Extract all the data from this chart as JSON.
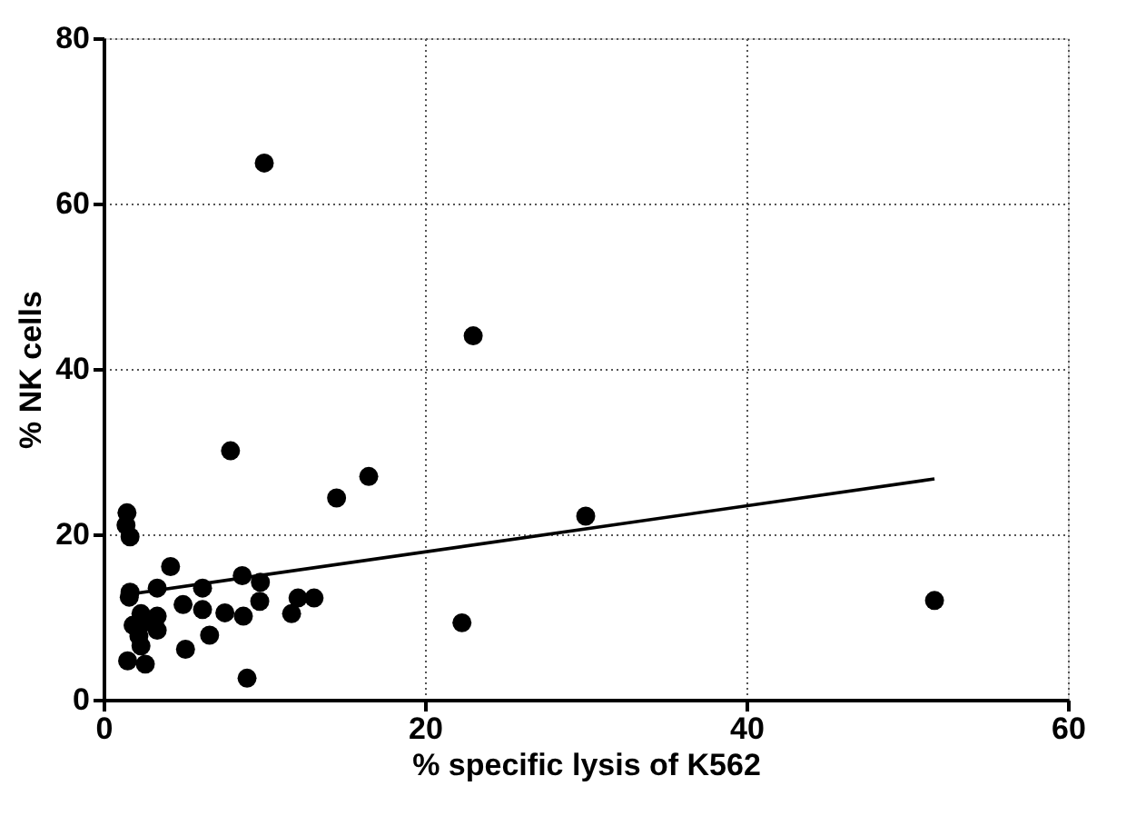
{
  "chart_data": {
    "type": "scatter",
    "xlabel": "% specific lysis of K562",
    "ylabel": "% NK cells",
    "xlim": [
      0,
      60
    ],
    "xticks": [
      0,
      20,
      40,
      60
    ],
    "ylim": [
      0,
      80
    ],
    "yticks": [
      0,
      20,
      40,
      60,
      80
    ],
    "grid": true,
    "marker": "circle",
    "series": [
      {
        "color": "#000000",
        "x": [
          1.46,
          1.4,
          1.65,
          4.17,
          1.65,
          1.6,
          3.34,
          6.16,
          8.63,
          9.76,
          9.72,
          4.95,
          6.16,
          7.55,
          8.7,
          2.33,
          3.34,
          1.84,
          2.4,
          3.34,
          2.2,
          6.6,
          2.33,
          5.1,
          1.5,
          2.6,
          8.93,
          11.7,
          12.1,
          13.1,
          7.9,
          14.5,
          16.5,
          10.0,
          23.0,
          22.3,
          30.0,
          51.7
        ],
        "values": [
          22.6,
          21.1,
          19.7,
          16.1,
          13.0,
          12.4,
          13.5,
          13.5,
          15.0,
          14.2,
          11.9,
          11.5,
          10.9,
          10.5,
          10.1,
          10.4,
          10.1,
          9.0,
          9.2,
          8.4,
          7.7,
          7.8,
          6.5,
          6.1,
          4.7,
          4.3,
          2.6,
          10.4,
          12.3,
          12.3,
          30.1,
          24.4,
          27.0,
          64.9,
          44.0,
          9.3,
          22.2,
          12.0
        ]
      },
      {
        "type": "line",
        "color": "#000000",
        "marker": "none",
        "x": [
          1.4,
          51.7
        ],
        "values": [
          12.7,
          26.7
        ]
      }
    ]
  }
}
